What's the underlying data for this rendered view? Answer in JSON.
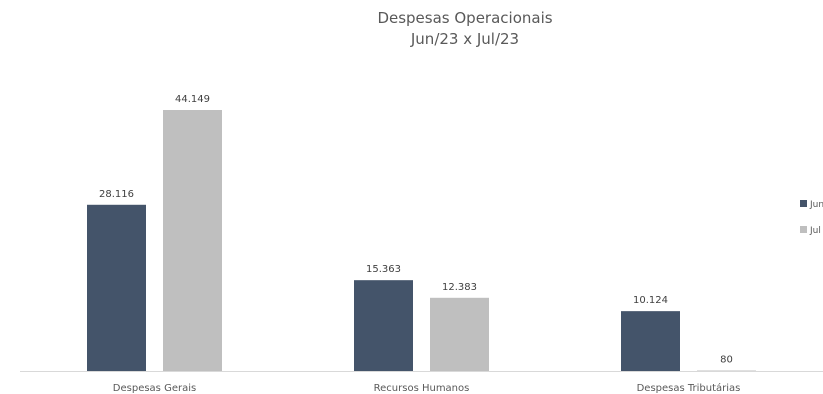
{
  "chart_data": {
    "type": "bar",
    "title": "Despesas Operacionais",
    "subtitle": "Jun/23 x Jul/23",
    "categories": [
      "Despesas Gerais",
      "Recursos Humanos",
      "Despesas Tributárias"
    ],
    "series": [
      {
        "name": "Jun",
        "values": [
          28116,
          15363,
          10124
        ],
        "labels": [
          "28.116",
          "15.363",
          "10.124"
        ],
        "color": "#44546A"
      },
      {
        "name": "Jul",
        "values": [
          44149,
          12383,
          80
        ],
        "labels": [
          "44.149",
          "12.383",
          "80"
        ],
        "color": "#BFBFBF"
      }
    ],
    "ylim": [
      0,
      44149
    ],
    "grid": false,
    "legend": "right",
    "axis_color": "#D9D9D9"
  }
}
